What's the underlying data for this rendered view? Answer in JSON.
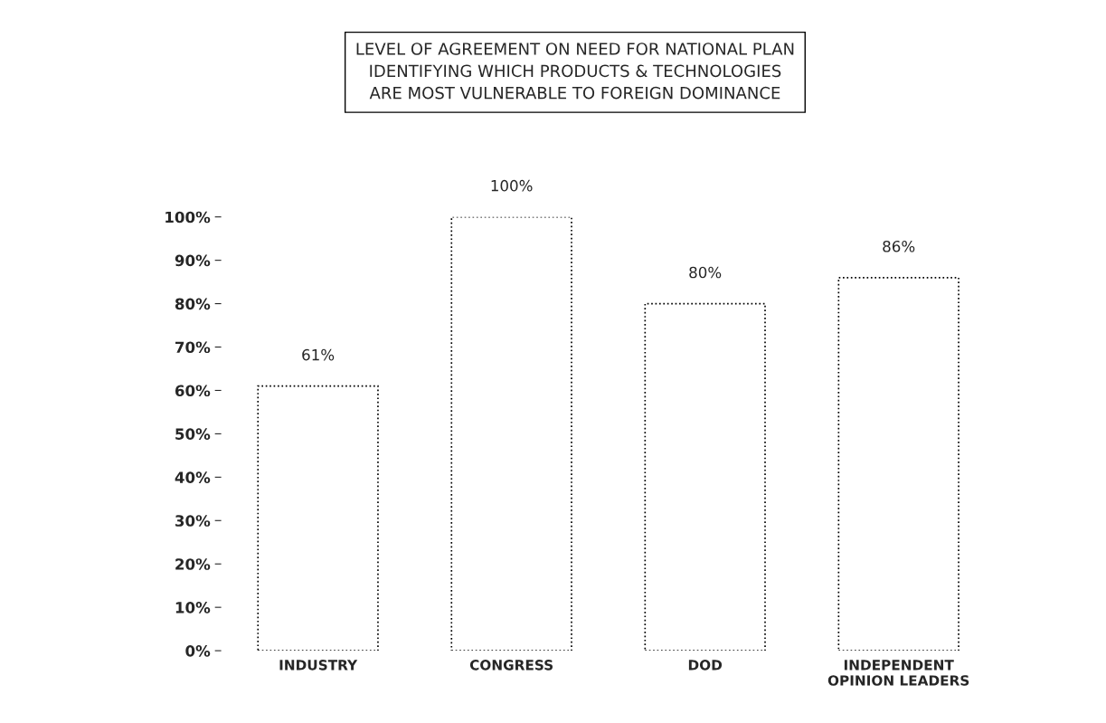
{
  "chart_data": {
    "type": "bar",
    "title": "LEVEL OF AGREEMENT ON NEED FOR NATIONAL PLAN\nIDENTIFYING WHICH PRODUCTS & TECHNOLOGIES\nARE MOST VULNERABLE TO FOREIGN DOMINANCE",
    "categories": [
      "INDUSTRY",
      "CONGRESS",
      "DOD",
      "INDEPENDENT\nOPINION LEADERS"
    ],
    "values": [
      61,
      100,
      80,
      86
    ],
    "value_labels": [
      "61%",
      "100%",
      "80%",
      "86%"
    ],
    "color": "#ffffff",
    "ylim": [
      0,
      100
    ],
    "yticks": [
      {
        "value": 0,
        "label": "0%"
      },
      {
        "value": 10,
        "label": "10%"
      },
      {
        "value": 20,
        "label": "20%"
      },
      {
        "value": 30,
        "label": "30%"
      },
      {
        "value": 40,
        "label": "40%"
      },
      {
        "value": 50,
        "label": "50%"
      },
      {
        "value": 60,
        "label": "60%"
      },
      {
        "value": 70,
        "label": "70%"
      },
      {
        "value": 80,
        "label": "80%"
      },
      {
        "value": 90,
        "label": "90%"
      },
      {
        "value": 100,
        "label": "100%"
      }
    ],
    "grid": false,
    "legend": false
  }
}
